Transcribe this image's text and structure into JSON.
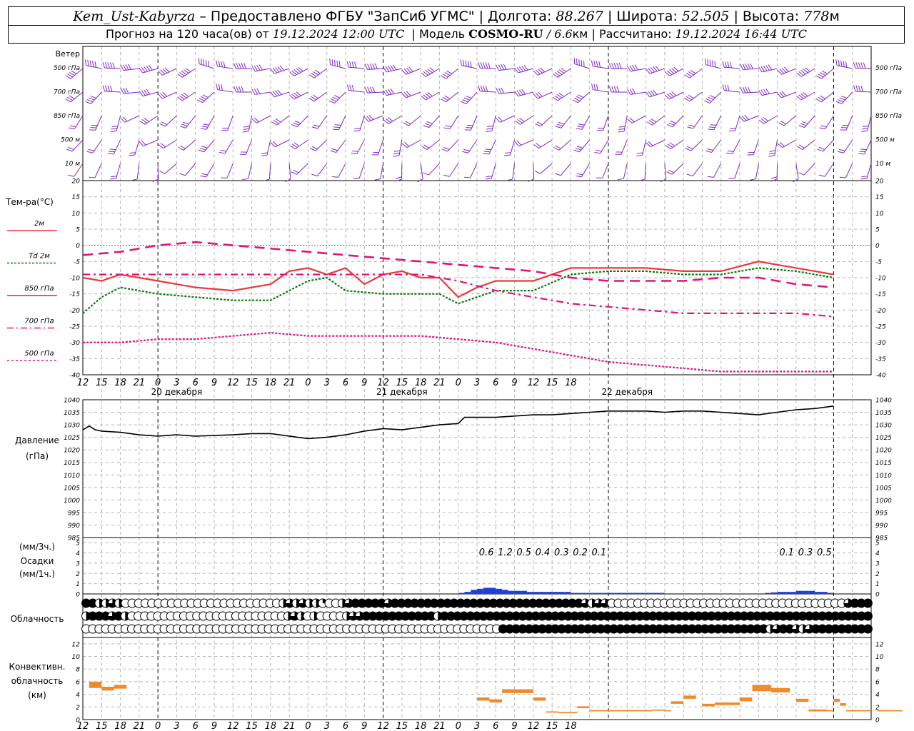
{
  "header": {
    "station": "Kem_Ust-Kabyrza",
    "provider": "– Предоставлено ФГБУ \"ЗапСиб УГМС\"",
    "lon_label": "Долгота:",
    "lon": "88.267",
    "lat_label": "Широта:",
    "lat": "52.505",
    "alt_label": "Высота:",
    "alt": "778",
    "alt_unit": "м",
    "forecast_label": "Прогноз на 120 часа(ов) от",
    "issued": "19.12.2024 12:00 UTC",
    "model_label": "Модель",
    "model": "COSMO-RU",
    "resolution": "/ 6.6",
    "res_unit": "км",
    "computed_label": "Рассчитано:",
    "computed": "19.12.2024 16:44 UTC"
  },
  "panels": {
    "wind": {
      "title": "Ветер",
      "levels": [
        "500 гПа",
        "700 гПа",
        "850 гПа",
        "500  м",
        "10   м"
      ]
    },
    "temperature": {
      "title": "Тем-ра(°C)",
      "legend": [
        {
          "label": "2м",
          "color": "#e83a3a",
          "dash": ""
        },
        {
          "label": "Td  2м",
          "color": "#0a7a0a",
          "dash": "3,2"
        },
        {
          "label": "850 гПа",
          "color": "#e0157a",
          "dash": ""
        },
        {
          "label": "700 гПа",
          "color": "#e0157a",
          "dash": "9,4,2,4"
        },
        {
          "label": "500 гПа",
          "color": "#e0157a",
          "dash": "3,3"
        }
      ]
    },
    "pressure": {
      "title": "Давление",
      "unit": "(гПа)"
    },
    "precip": {
      "title_unit3": "(мм/3ч.)",
      "title": "Осадки",
      "title_unit1": "(мм/1ч.)"
    },
    "cloud": {
      "title": "Облачность"
    },
    "convective": {
      "title_1": "Конвективн.",
      "title_2": "облачность",
      "title_3": "(км)"
    }
  },
  "time_axis": {
    "hour_labels": [
      "12",
      "15",
      "18",
      "21",
      "0",
      "3",
      "6",
      "9",
      "12",
      "15",
      "18",
      "21",
      "0",
      "3",
      "6",
      "9",
      "12",
      "15",
      "18",
      "21",
      "0",
      "3",
      "6",
      "9",
      "12",
      "15",
      "18"
    ],
    "day_labels": [
      "20 декабря",
      "21 декабря",
      "22 декабря"
    ]
  },
  "chart_data": [
    {
      "type": "line",
      "title": "Тем-ра(°C)",
      "x_unit": "hours from 19.12.2024 12:00 UTC",
      "ylim": [
        -40,
        20
      ],
      "yticks": [
        20,
        15,
        10,
        5,
        0,
        -5,
        -10,
        -15,
        -20,
        -25,
        -30,
        -35,
        -40
      ],
      "grid": true,
      "series": [
        {
          "name": "2м",
          "x": [
            0,
            3,
            6,
            9,
            12,
            18,
            24,
            30,
            33,
            36,
            39,
            42,
            45,
            48,
            51,
            54,
            57,
            60,
            63,
            66,
            69,
            72,
            78,
            84,
            90,
            96,
            102,
            108,
            114,
            120
          ],
          "values": [
            -10,
            -11,
            -9,
            -10,
            -11,
            -13,
            -14,
            -12,
            -8,
            -7,
            -9,
            -7,
            -12,
            -9,
            -8,
            -10,
            -10,
            -16,
            -13,
            -11,
            -11,
            -11,
            -7,
            -7,
            -7,
            -8,
            -8,
            -5,
            -7,
            -9
          ]
        },
        {
          "name": "Td  2м",
          "x": [
            0,
            3,
            6,
            12,
            18,
            24,
            30,
            33,
            36,
            39,
            42,
            48,
            54,
            57,
            60,
            63,
            66,
            72,
            78,
            84,
            90,
            96,
            102,
            108,
            114,
            120
          ],
          "values": [
            -21,
            -16,
            -13,
            -15,
            -16,
            -17,
            -17,
            -14,
            -11,
            -10,
            -14,
            -15,
            -15,
            -15,
            -18,
            -16,
            -14,
            -14,
            -9,
            -8,
            -8,
            -9,
            -9,
            -7,
            -8,
            -10
          ]
        },
        {
          "name": "850 гПа",
          "x": [
            0,
            6,
            12,
            18,
            24,
            30,
            36,
            42,
            48,
            54,
            60,
            66,
            72,
            78,
            84,
            90,
            96,
            102,
            108,
            114,
            120
          ],
          "values": [
            -3,
            -2,
            0,
            1,
            0,
            -1,
            -2,
            -3,
            -4,
            -5,
            -6,
            -7,
            -8,
            -10,
            -11,
            -11,
            -11,
            -10,
            -10,
            -12,
            -13
          ]
        },
        {
          "name": "700 гПа",
          "x": [
            0,
            6,
            12,
            18,
            24,
            30,
            36,
            42,
            48,
            54,
            60,
            66,
            72,
            78,
            84,
            90,
            96,
            102,
            108,
            114,
            120
          ],
          "values": [
            -9,
            -9,
            -9,
            -9,
            -9,
            -9,
            -9,
            -9,
            -9,
            -9,
            -11,
            -14,
            -16,
            -18,
            -19,
            -20,
            -21,
            -21,
            -21,
            -21,
            -22
          ]
        },
        {
          "name": "500 гПа",
          "x": [
            0,
            6,
            12,
            18,
            24,
            30,
            36,
            42,
            48,
            54,
            60,
            66,
            72,
            78,
            84,
            90,
            96,
            102,
            108,
            114,
            120
          ],
          "values": [
            -30,
            -30,
            -29,
            -29,
            -28,
            -27,
            -28,
            -28,
            -28,
            -28,
            -29,
            -30,
            -32,
            -34,
            -36,
            -37,
            -38,
            -39,
            -39,
            -39,
            -39
          ]
        }
      ]
    },
    {
      "type": "line",
      "title": "Давление",
      "ylabel": "(гПа)",
      "ylim": [
        985,
        1040
      ],
      "yticks": [
        1040,
        1035,
        1030,
        1025,
        1020,
        1015,
        1010,
        1005,
        1000,
        995,
        990,
        985
      ],
      "grid": true,
      "series": [
        {
          "x": [
            0,
            1,
            2,
            3,
            6,
            9,
            12,
            15,
            18,
            24,
            27,
            30,
            33,
            36,
            39,
            42,
            45,
            48,
            51,
            54,
            57,
            60,
            61,
            63,
            66,
            69,
            72,
            75,
            78,
            81,
            84,
            87,
            90,
            93,
            96,
            99,
            102,
            105,
            108,
            111,
            114,
            117,
            120
          ],
          "values": [
            1028,
            1029.5,
            1028,
            1027.5,
            1027,
            1026,
            1025.5,
            1026,
            1025.5,
            1026,
            1026.5,
            1026.5,
            1025.5,
            1024.5,
            1025,
            1026,
            1027.5,
            1028.5,
            1028,
            1029,
            1030,
            1030.5,
            1033,
            1033,
            1033,
            1033.5,
            1034,
            1034,
            1034.5,
            1035,
            1035.5,
            1035.5,
            1035.5,
            1035,
            1035.5,
            1035.5,
            1035,
            1034.5,
            1034,
            1035,
            1036,
            1036.5,
            1037.5
          ]
        }
      ]
    },
    {
      "type": "bar",
      "title": "Осадки",
      "ylabel": "(мм/1ч.)",
      "ylim": [
        0,
        5
      ],
      "hourly_x": [
        60,
        61,
        62,
        63,
        64,
        65,
        66,
        67,
        68,
        69,
        70,
        71,
        72,
        73,
        74,
        75,
        76,
        77,
        78,
        79,
        80,
        81,
        82,
        83,
        84,
        85,
        86,
        87,
        88,
        89,
        90,
        91,
        92,
        93,
        94,
        95,
        96,
        97,
        98,
        99,
        100,
        101,
        102,
        103,
        104,
        105,
        106,
        107,
        108,
        109,
        110,
        111,
        112,
        113,
        114,
        115,
        116,
        117,
        118,
        119
      ],
      "hourly_values": [
        0.1,
        0.2,
        0.4,
        0.5,
        0.6,
        0.6,
        0.5,
        0.4,
        0.3,
        0.3,
        0.3,
        0.2,
        0.2,
        0.2,
        0.2,
        0.2,
        0.2,
        0.2,
        0.1,
        0.1,
        0.1,
        0.1,
        0.1,
        0.1,
        0.1,
        0.1,
        0.1,
        0.1,
        0.1,
        0.1,
        0.1,
        0.1,
        0.1,
        0.05,
        0.05,
        0.05,
        0.05,
        0.05,
        0.05,
        0.05,
        0.05,
        0.05,
        0,
        0,
        0,
        0,
        0,
        0.05,
        0.05,
        0.1,
        0.15,
        0.2,
        0.2,
        0.2,
        0.3,
        0.3,
        0.3,
        0.2,
        0.2,
        0.1
      ],
      "three_hour_totals": [
        {
          "label": "0.6",
          "x": 64.5
        },
        {
          "label": "1.2",
          "x": 67.5
        },
        {
          "label": "0.5",
          "x": 70.5
        },
        {
          "label": "0.4",
          "x": 73.5
        },
        {
          "label": "0.3",
          "x": 76.5
        },
        {
          "label": "0.2",
          "x": 79.5
        },
        {
          "label": "0.1",
          "x": 82.5
        },
        {
          "label": "0.1",
          "x": 112.5
        },
        {
          "label": "0.3",
          "x": 115.5
        },
        {
          "label": "0.5",
          "x": 118.5
        }
      ]
    },
    {
      "type": "heatmap",
      "title": "Облачность",
      "values_description": "fraction 0..1 per hour, rows: upper, middle, lower",
      "rows": {
        "upper": "1,1,0.5,0.5,0.75,0.5,0,0,0,0,0,0,0,0,0,0,0,0,0,0,0,0,0,0,0,0,0,0,0,0,0.5,0.75,0.5,0.75,0.5,0.5,0.25,0,0,0.5,0.75,1,1,1,1,1,0.75,1,1,1,1,1,1,1,1,1,1,1,1,1,1,1,1,1,1,1,1,1,1,1,1,1,1,1,1,1,0.75,0.5,0.75,0.75,0,0,0,0,0,0,0,0,0,0,0,0,0,0,0,0,0,0,0,0,0,0,0,0,0,0,0,0,0,0,0,0,0,0,0,0,0.75,1,1,1",
        "middle": "0.5,1,1,1,0.75,1,0.5,0,0,0,0,0,0,0,0,0,0,0,0,0,0,0,0,0,0,0,0,0,0,0,0,0.5,0.75,0.5,0,0.5,0,0,0,0,0.5,0.75,0.75,1,1,1,1,1,1,1,1,1,1,1,0.5,1,1,1,1,1,1,1,1,1,1,1,1,1,1,1,1,1,1,1,1,1,1,1,1,1,1,1,1,1,1,1,1,1,1,1,1,1,1,1,1,1,1,1,1,1,1,1,1,1,1,1,1,1,1,1,1,1,1,1,1,1,1,1,1,1,1",
        "lower": "0,0,0,0,0,0,0,0,0,0,0,0,0,0,0,0,0,0,0,0,0,0,0,0,0,0,0,0,0,0,0,0,0,0,0,0,0,0,0,0,0,0,0,0,0,0,0,0,0,0,0,0,0,0,0,0,0,0,0,0,0,0,0,0,1,1,1,1,1,1,1,1,1,1,1,1,1,1,1,1,1,1,1,1,1,1,1,1,1,1,1,1,1,1,1,1,1,1,1,1,1,1,1,1,1,0.5,0.75,1,1,0.75,0.5,0.75,1,1,1,1,1,1,1,1,1"
      }
    },
    {
      "type": "bar",
      "title": "Конвективн. облачность",
      "ylabel": "(км)",
      "ylim": [
        0,
        13
      ],
      "yticks": [
        12,
        10,
        8,
        6,
        4,
        2,
        0
      ],
      "segments": [
        {
          "x0": 1,
          "x1": 3,
          "top": 6,
          "bottom": 5
        },
        {
          "x0": 3,
          "x1": 5,
          "top": 5.2,
          "bottom": 4.6
        },
        {
          "x0": 5,
          "x1": 7,
          "top": 5.5,
          "bottom": 4.9
        },
        {
          "x0": 63,
          "x1": 65,
          "top": 3.5,
          "bottom": 3
        },
        {
          "x0": 65,
          "x1": 67,
          "top": 3.2,
          "bottom": 2.7
        },
        {
          "x0": 67,
          "x1": 72,
          "top": 4.8,
          "bottom": 4.2
        },
        {
          "x0": 72,
          "x1": 74,
          "top": 3.5,
          "bottom": 3
        },
        {
          "x0": 74,
          "x1": 76,
          "top": 1.3,
          "bottom": 1.1
        },
        {
          "x0": 76,
          "x1": 79,
          "top": 1.2,
          "bottom": 1
        },
        {
          "x0": 79,
          "x1": 81,
          "top": 2.1,
          "bottom": 1.8
        },
        {
          "x0": 81,
          "x1": 91,
          "top": 1.5,
          "bottom": 1.3
        },
        {
          "x0": 91,
          "x1": 93,
          "top": 1.6,
          "bottom": 1.4
        },
        {
          "x0": 93,
          "x1": 94,
          "top": 1.5,
          "bottom": 1.3
        },
        {
          "x0": 94,
          "x1": 96,
          "top": 2.9,
          "bottom": 2.5
        },
        {
          "x0": 96,
          "x1": 98,
          "top": 3.8,
          "bottom": 3.3
        },
        {
          "x0": 99,
          "x1": 101,
          "top": 2.5,
          "bottom": 2.1
        },
        {
          "x0": 101,
          "x1": 103,
          "top": 2.7,
          "bottom": 2.3
        },
        {
          "x0": 103,
          "x1": 105,
          "top": 2.7,
          "bottom": 2.3
        },
        {
          "x0": 105,
          "x1": 107,
          "top": 3.5,
          "bottom": 2.9
        },
        {
          "x0": 107,
          "x1": 110,
          "top": 5.5,
          "bottom": 4.5
        },
        {
          "x0": 110,
          "x1": 113,
          "top": 5,
          "bottom": 4.3
        },
        {
          "x0": 114,
          "x1": 116,
          "top": 3.3,
          "bottom": 2.8
        },
        {
          "x0": 116,
          "x1": 119,
          "top": 1.6,
          "bottom": 1.3
        },
        {
          "x0": 119,
          "x1": 120,
          "top": 1.5,
          "bottom": 1.3
        },
        {
          "x0": 120,
          "x1": 121,
          "top": 3.3,
          "bottom": 2.8
        },
        {
          "x0": 121,
          "x1": 122,
          "top": 2.6,
          "bottom": 2.2
        },
        {
          "x0": 122,
          "x1": 126,
          "top": 1.5,
          "bottom": 1.3
        },
        {
          "x0": 127,
          "x1": 131,
          "top": 1.5,
          "bottom": 1.3
        }
      ]
    },
    {
      "type": "scatter",
      "title": "Ветер",
      "mark": "wind-barbs",
      "rows": [
        "500 гПа",
        "700 гПа",
        "850 гПа",
        "500  м",
        "10   м"
      ],
      "directions_deg": [
        260,
        250,
        220,
        220,
        200
      ],
      "speeds_kt": [
        40,
        30,
        20,
        15,
        5
      ]
    }
  ]
}
